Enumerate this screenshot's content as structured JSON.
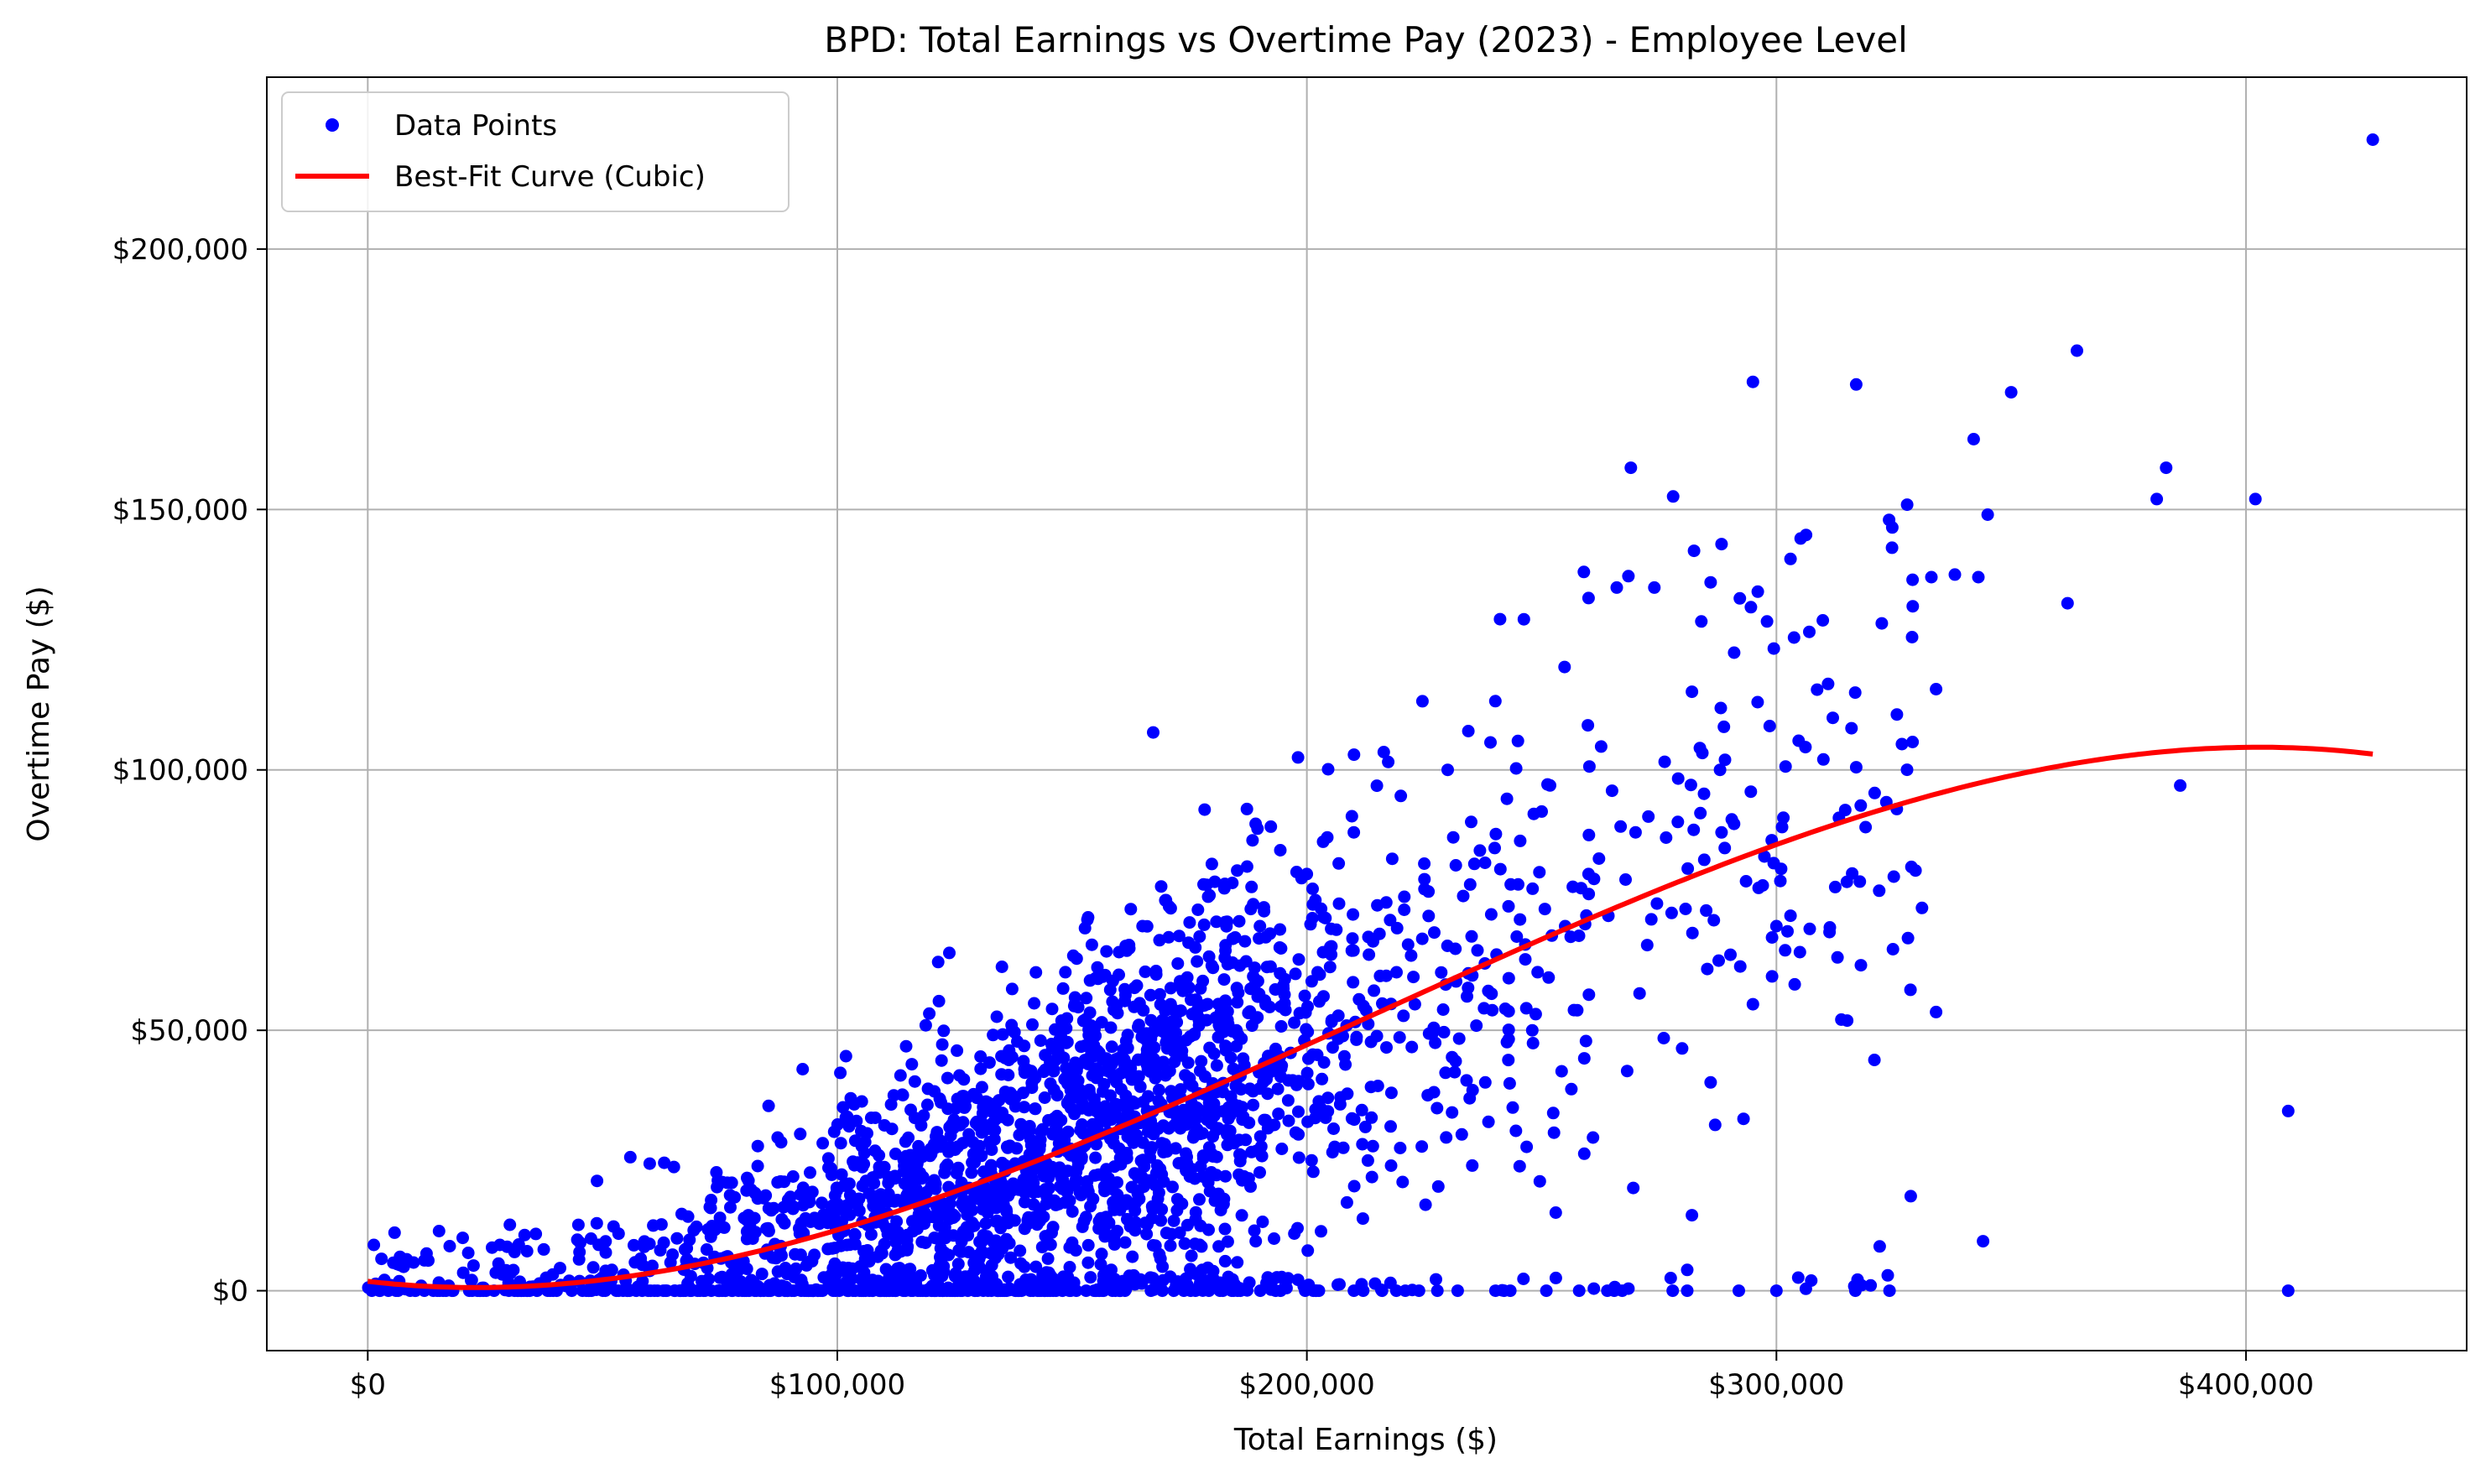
{
  "chart_data": {
    "type": "scatter",
    "title": "BPD: Total Earnings vs Overtime Pay (2023) - Employee Level",
    "xlabel": "Total Earnings ($)",
    "ylabel": "Overtime Pay ($)",
    "xlim": [
      -21500,
      447000
    ],
    "ylim": [
      -11500,
      233000
    ],
    "x_ticks": [
      0,
      100000,
      200000,
      300000,
      400000
    ],
    "x_tick_labels": [
      "$0",
      "$100,000",
      "$200,000",
      "$300,000",
      "$400,000"
    ],
    "y_ticks": [
      0,
      50000,
      100000,
      150000,
      200000
    ],
    "y_tick_labels": [
      "$0",
      "$50,000",
      "$100,000",
      "$150,000",
      "$200,000"
    ],
    "grid": true,
    "legend_position": "top-left",
    "colors": {
      "points": "#0000ff",
      "curve": "#ff0000",
      "grid": "#b0b0b0",
      "axes": "#000000"
    },
    "series": [
      {
        "name": "Data Points",
        "kind": "scatter",
        "sample_count": 2400,
        "x_range": [
          0,
          427000
        ],
        "y_range": [
          0,
          221000
        ]
      },
      {
        "name": "Best-Fit Curve (Cubic)",
        "kind": "line",
        "fit": "cubic",
        "x_range": [
          0,
          427000
        ],
        "coefficients": {
          "a": -3.787e-12,
          "b": 2.419e-06,
          "c": -0.10535,
          "d": 1800
        }
      }
    ],
    "outliers": [
      [
        427000,
        221000
      ],
      [
        364000,
        180500
      ],
      [
        295000,
        174500
      ],
      [
        317000,
        174000
      ],
      [
        350000,
        172500
      ],
      [
        342000,
        163500
      ],
      [
        383000,
        158000
      ],
      [
        269000,
        158000
      ],
      [
        381000,
        152000
      ],
      [
        402000,
        152000
      ],
      [
        278000,
        152500
      ],
      [
        345000,
        149000
      ],
      [
        324000,
        148000
      ],
      [
        333000,
        137000
      ],
      [
        338000,
        137500
      ],
      [
        343000,
        137000
      ],
      [
        362000,
        132000
      ],
      [
        386000,
        97000
      ],
      [
        409000,
        34500
      ],
      [
        344000,
        9500
      ],
      [
        322000,
        8500
      ],
      [
        409000,
        0
      ],
      [
        300000,
        0
      ],
      [
        292000,
        0
      ],
      [
        281000,
        0
      ],
      [
        264000,
        0
      ],
      [
        258000,
        0
      ],
      [
        251000,
        0
      ],
      [
        242000,
        0
      ],
      [
        216000,
        0
      ],
      [
        212000,
        0
      ],
      [
        202000,
        0
      ],
      [
        334000,
        53500
      ],
      [
        331000,
        73500
      ],
      [
        319000,
        89000
      ],
      [
        317000,
        100500
      ],
      [
        316000,
        108000
      ],
      [
        312000,
        110000
      ],
      [
        307000,
        126500
      ],
      [
        303000,
        140500
      ],
      [
        298000,
        128500
      ],
      [
        288000,
        100000
      ],
      [
        286000,
        136000
      ],
      [
        284000,
        128500
      ],
      [
        291000,
        122500
      ],
      [
        282000,
        115000
      ],
      [
        259000,
        138000
      ],
      [
        260000,
        133000
      ],
      [
        266000,
        135000
      ],
      [
        274000,
        135000
      ],
      [
        293000,
        33000
      ],
      [
        286000,
        40000
      ],
      [
        282000,
        14500
      ],
      [
        281000,
        4000
      ],
      [
        276000,
        48500
      ],
      [
        325000,
        79500
      ],
      [
        315000,
        78500
      ],
      [
        318000,
        62500
      ],
      [
        303000,
        72000
      ],
      [
        299000,
        86500
      ],
      [
        289000,
        85000
      ],
      [
        310000,
        102000
      ],
      [
        313000,
        64000
      ],
      [
        305000,
        65000
      ],
      [
        295000,
        55000
      ],
      [
        329000,
        136500
      ],
      [
        334000,
        115500
      ],
      [
        311000,
        116500
      ],
      [
        301000,
        81000
      ],
      [
        300000,
        70000
      ],
      [
        296000,
        113000
      ],
      [
        279000,
        90000
      ]
    ],
    "density_points": [
      [
        148000,
        28000
      ],
      [
        152000,
        35000
      ],
      [
        158000,
        42000
      ],
      [
        162000,
        30000
      ],
      [
        144000,
        22000
      ],
      [
        166000,
        48000
      ],
      [
        171000,
        55000
      ],
      [
        175000,
        40000
      ],
      [
        180000,
        62000
      ],
      [
        185000,
        50000
      ],
      [
        190000,
        70000
      ],
      [
        195000,
        58000
      ],
      [
        200000,
        80000
      ],
      [
        205000,
        66000
      ],
      [
        210000,
        88000
      ],
      [
        215000,
        74000
      ],
      [
        220000,
        95000
      ],
      [
        225000,
        82000
      ],
      [
        230000,
        100000
      ],
      [
        235000,
        90000
      ],
      [
        240000,
        85000
      ],
      [
        245000,
        78000
      ],
      [
        250000,
        92000
      ],
      [
        255000,
        70000
      ],
      [
        260000,
        80000
      ],
      [
        265000,
        96000
      ],
      [
        270000,
        88000
      ],
      [
        132000,
        15000
      ],
      [
        128000,
        30000
      ],
      [
        120000,
        20000
      ],
      [
        112000,
        12000
      ],
      [
        105000,
        24000
      ],
      [
        98000,
        8000
      ],
      [
        90000,
        18000
      ],
      [
        82000,
        10000
      ],
      [
        75000,
        14000
      ],
      [
        68000,
        6000
      ],
      [
        60000,
        9000
      ],
      [
        52000,
        4000
      ],
      [
        45000,
        6000
      ],
      [
        38000,
        2500
      ],
      [
        30000,
        1500
      ],
      [
        22000,
        2000
      ],
      [
        15000,
        800
      ],
      [
        8000,
        300
      ],
      [
        155000,
        60000
      ],
      [
        160000,
        65000
      ],
      [
        165000,
        70000
      ],
      [
        170000,
        75000
      ],
      [
        178000,
        78000
      ],
      [
        183000,
        30000
      ],
      [
        188000,
        20000
      ],
      [
        193000,
        10000
      ],
      [
        198000,
        12000
      ],
      [
        203000,
        35000
      ],
      [
        208000,
        45000
      ],
      [
        213000,
        25000
      ],
      [
        218000,
        38000
      ],
      [
        223000,
        55000
      ],
      [
        228000,
        20000
      ],
      [
        233000,
        30000
      ],
      [
        238000,
        40000
      ],
      [
        243000,
        60000
      ],
      [
        248000,
        50000
      ],
      [
        253000,
        15000
      ]
    ]
  }
}
